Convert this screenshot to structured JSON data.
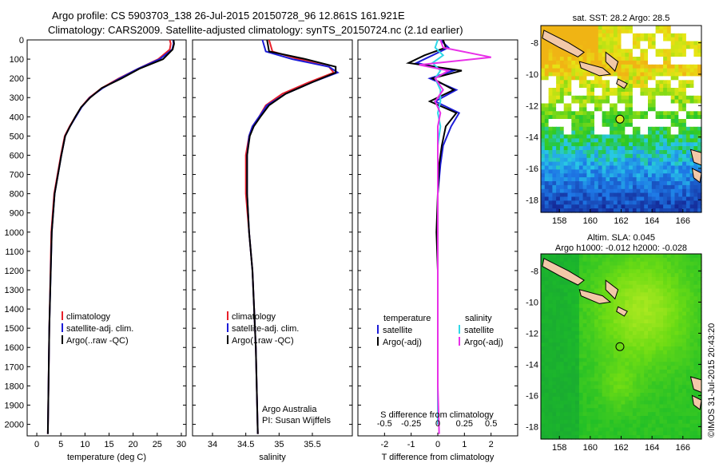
{
  "header": {
    "title_line1": "Argo profile: CS 5903703_138 26-Jul-2015 20150728_96 12.861S 161.921E",
    "title_line2": "Climatology: CARS2009. Satellite-adjusted climatology: synTS_20150724.nc (2.1d earlier)"
  },
  "side_note": "©IMOS 31-Jul-2015 20:43:20",
  "credit": {
    "line1": "Argo Australia",
    "line2": "PI: Susan Wijffels"
  },
  "colors": {
    "climatology": "#e8202a",
    "satellite": "#1c1cd8",
    "argo": "#000000",
    "sal_sat": "#30d8e8",
    "sal_argo": "#e830e8"
  },
  "chart_data": [
    {
      "type": "line",
      "xlabel": "temperature (deg C)",
      "ylabel": "",
      "xlim": [
        -2,
        31
      ],
      "ylim": [
        2060,
        0
      ],
      "xticks": [
        0,
        5,
        10,
        15,
        20,
        25,
        30
      ],
      "yticks": [
        0,
        100,
        200,
        300,
        400,
        500,
        600,
        700,
        800,
        900,
        1000,
        1100,
        1200,
        1300,
        1400,
        1500,
        1600,
        1700,
        1800,
        1900,
        2000
      ],
      "legend": {
        "position": "bottom-left",
        "entries": [
          "climatology",
          "satellite-adj. clim.",
          "Argo(..raw -QC)"
        ]
      },
      "series": [
        {
          "name": "climatology",
          "color": "#e8202a",
          "x": [
            27.6,
            27.8,
            27.6,
            25.2,
            21.0,
            17.0,
            13.5,
            10.9,
            9.2,
            8.0,
            6.8,
            5.8,
            5.0,
            3.6,
            3.0,
            2.6,
            2.3
          ],
          "y": [
            0,
            20,
            50,
            100,
            150,
            200,
            250,
            300,
            350,
            400,
            450,
            500,
            600,
            800,
            1000,
            1500,
            2050
          ]
        },
        {
          "name": "satellite-adj. clim.",
          "color": "#1c1cd8",
          "x": [
            28.3,
            28.4,
            28.1,
            25.5,
            21.0,
            17.2,
            13.7,
            11.0,
            9.3,
            8.1,
            6.9,
            5.9,
            5.1,
            3.7,
            3.1,
            2.6,
            2.3
          ],
          "y": [
            0,
            20,
            50,
            100,
            150,
            200,
            250,
            300,
            350,
            400,
            450,
            500,
            600,
            800,
            1000,
            1500,
            2050
          ]
        },
        {
          "name": "Argo(..raw -QC)",
          "color": "#000000",
          "x": [
            28.4,
            28.5,
            28.2,
            26.2,
            21.3,
            17.6,
            13.5,
            11.1,
            9.2,
            8.0,
            6.9,
            5.9,
            5.1,
            3.7,
            3.1,
            2.6,
            2.3
          ],
          "y": [
            0,
            20,
            50,
            100,
            150,
            200,
            250,
            300,
            350,
            400,
            450,
            500,
            600,
            800,
            1000,
            1500,
            2050
          ]
        }
      ]
    },
    {
      "type": "line",
      "xlabel": "salinity",
      "ylabel": "",
      "xlim": [
        33.7,
        36.1
      ],
      "ylim": [
        2060,
        0
      ],
      "xticks": [
        34,
        34.5,
        35,
        35.5
      ],
      "legend": {
        "position": "bottom-left",
        "entries": [
          "climatology",
          "satellite-adj. clim.",
          "Argo(..raw -QC)"
        ]
      },
      "series": [
        {
          "name": "climatology",
          "color": "#e8202a",
          "x": [
            34.85,
            34.9,
            35.3,
            35.75,
            35.82,
            35.45,
            35.05,
            34.8,
            34.7,
            34.6,
            34.55,
            34.5,
            34.5,
            34.55,
            34.6,
            34.65,
            34.68
          ],
          "y": [
            0,
            60,
            100,
            140,
            170,
            220,
            280,
            340,
            400,
            450,
            500,
            600,
            800,
            1000,
            1200,
            1600,
            2050
          ]
        },
        {
          "name": "satellite-adj. clim.",
          "color": "#1c1cd8",
          "x": [
            34.75,
            34.8,
            35.2,
            35.75,
            35.88,
            35.5,
            35.1,
            34.82,
            34.7,
            34.6,
            34.55,
            34.52,
            34.52,
            34.55,
            34.6,
            34.65,
            34.68
          ],
          "y": [
            0,
            60,
            100,
            140,
            170,
            220,
            280,
            340,
            400,
            450,
            500,
            600,
            800,
            1000,
            1200,
            1600,
            2050
          ]
        },
        {
          "name": "Argo(..raw -QC)",
          "color": "#000000",
          "x": [
            34.82,
            34.85,
            35.4,
            35.85,
            35.85,
            35.5,
            35.1,
            34.85,
            34.72,
            34.62,
            34.56,
            34.52,
            34.52,
            34.55,
            34.6,
            34.65,
            34.68
          ],
          "y": [
            0,
            60,
            100,
            140,
            170,
            220,
            280,
            340,
            400,
            450,
            500,
            600,
            800,
            1000,
            1200,
            1600,
            2050
          ]
        }
      ]
    },
    {
      "type": "line",
      "xlabel": "T difference from climatology",
      "x2label": "S difference from climatology",
      "ylabel": "",
      "xlim": [
        -3,
        3
      ],
      "ylim": [
        2060,
        0
      ],
      "xticks": [
        -2,
        -1,
        0,
        1,
        2
      ],
      "x2ticks": [
        "-0.5",
        "-0.25",
        "0",
        "0.25",
        "0.5"
      ],
      "legend": {
        "position": "bottom",
        "groups": [
          "temperature",
          "salinity"
        ],
        "entries": [
          "satellite",
          "Argo(-adj)",
          "satellite",
          "Argo(-adj)"
        ]
      },
      "series": [
        {
          "name": "temperature satellite",
          "color": "#1c1cd8",
          "x": [
            0.1,
            0.4,
            -0.2,
            -0.8,
            0.6,
            -0.3,
            0.7,
            -0.1,
            0.8,
            0.5,
            0.2,
            0.1,
            0.0,
            0.0,
            0.0
          ],
          "y": [
            0,
            40,
            80,
            120,
            160,
            200,
            260,
            320,
            380,
            450,
            550,
            650,
            800,
            1200,
            2000
          ]
        },
        {
          "name": "temperature Argo(-adj)",
          "color": "#000000",
          "x": [
            0.2,
            0.3,
            -0.5,
            -1.1,
            0.9,
            -0.2,
            0.6,
            -0.3,
            0.7,
            0.3,
            0.15,
            0.05,
            0.0,
            -0.05,
            0.0,
            0.0
          ],
          "y": [
            0,
            40,
            80,
            120,
            160,
            200,
            260,
            320,
            380,
            450,
            550,
            650,
            800,
            1000,
            1200,
            2000
          ]
        },
        {
          "name": "salinity satellite",
          "color": "#30d8e8",
          "x": [
            0.0,
            -0.1,
            0.2,
            -0.2,
            0.1,
            -0.1,
            0.1,
            0.1,
            0.0,
            0.1,
            0.0,
            0.0,
            0.0
          ],
          "y": [
            0,
            40,
            80,
            120,
            160,
            200,
            260,
            320,
            380,
            450,
            550,
            800,
            2000
          ]
        },
        {
          "name": "salinity Argo(-adj)",
          "color": "#e830e8",
          "x": [
            0.1,
            0.2,
            2.0,
            -0.7,
            0.4,
            -0.1,
            0.2,
            -0.1,
            0.1,
            0.0,
            0.0,
            0.0,
            0.0,
            0.05
          ],
          "y": [
            0,
            40,
            90,
            130,
            160,
            200,
            260,
            320,
            380,
            450,
            550,
            800,
            1800,
            2050
          ]
        }
      ]
    },
    {
      "type": "heatmap",
      "title": "sat. SST: 28.2 Argo: 28.5",
      "xlim": [
        156.8,
        167.2
      ],
      "ylim": [
        -18.8,
        -6.9
      ],
      "xticks": [
        158,
        160,
        162,
        164,
        166
      ],
      "yticks": [
        -8,
        -10,
        -12,
        -14,
        -16,
        -18
      ],
      "marker": {
        "lon": 161.921,
        "lat": -12.861
      }
    },
    {
      "type": "heatmap",
      "title": "Altim. SLA: 0.045",
      "subtitle": "Argo h1000: -0.012 h2000: -0.028",
      "xlim": [
        156.8,
        167.2
      ],
      "ylim": [
        -18.8,
        -6.9
      ],
      "xticks": [
        158,
        160,
        162,
        164,
        166
      ],
      "yticks": [
        -8,
        -10,
        -12,
        -14,
        -16,
        -18
      ],
      "marker": {
        "lon": 161.921,
        "lat": -12.861
      }
    }
  ]
}
